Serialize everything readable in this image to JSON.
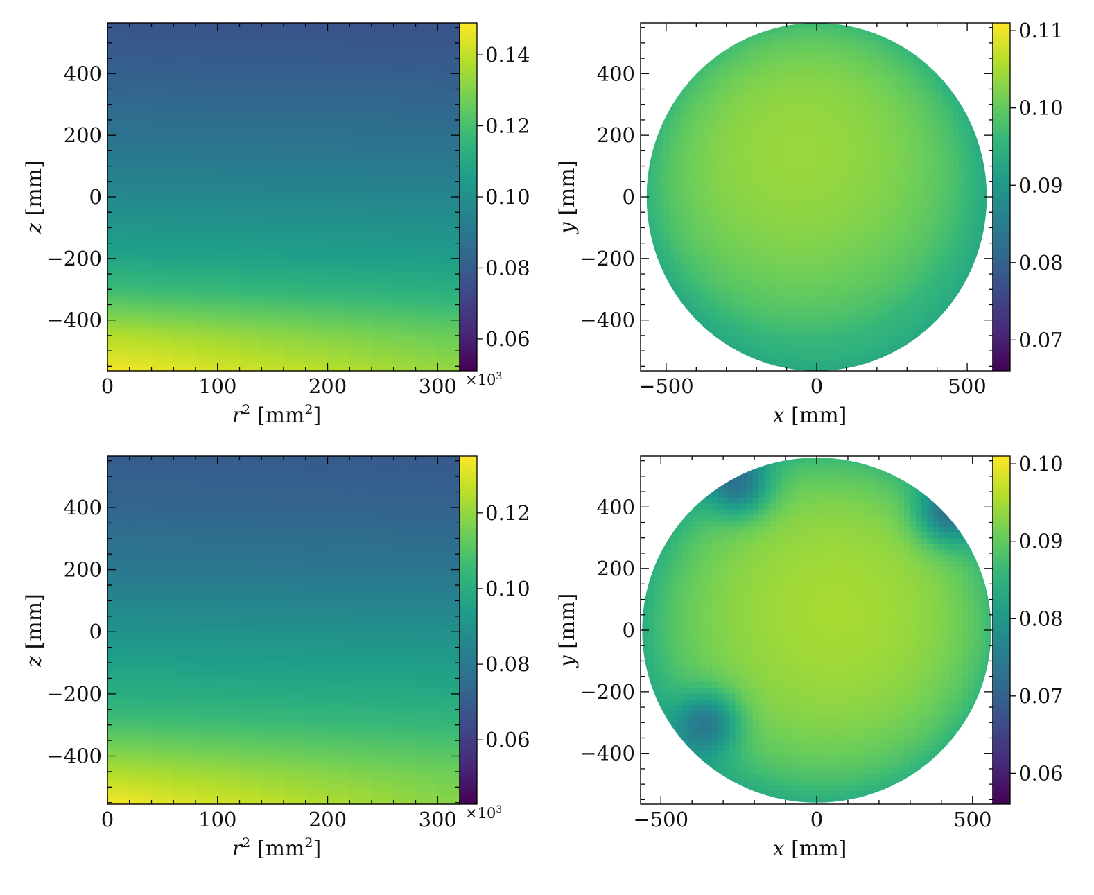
{
  "colorscale": {
    "name": "viridis",
    "stops": [
      "#440154",
      "#482878",
      "#3e4989",
      "#31688e",
      "#26828e",
      "#1f9e89",
      "#35b779",
      "#6ece58",
      "#b5de2b",
      "#fde725"
    ]
  },
  "chart_data": [
    {
      "id": "top-left",
      "type": "heatmap",
      "title": "",
      "xlabel_var": "r",
      "xlabel_sup": "2",
      "xlabel_unit_pre": " [mm",
      "xlabel_unit_sup": "2",
      "xlabel_unit_post": "]",
      "ylabel_var": "z",
      "ylabel_unit": " [mm]",
      "xlim": [
        0,
        320
      ],
      "ylim": [
        -565,
        565
      ],
      "x_ticks": [
        0,
        100,
        200,
        300
      ],
      "x_tick_labels": [
        "0",
        "100",
        "200",
        "300"
      ],
      "x_multiplier_base": "×10",
      "x_multiplier_exp": "3",
      "y_ticks": [
        -400,
        -200,
        0,
        200,
        400
      ],
      "y_tick_labels": [
        "−400",
        "−200",
        "0",
        "200",
        "400"
      ],
      "colorbar": {
        "range": [
          0.051,
          0.149
        ],
        "ticks": [
          0.06,
          0.08,
          0.1,
          0.12,
          0.14
        ],
        "tick_labels": [
          "0.06",
          "0.08",
          "0.10",
          "0.12",
          "0.14"
        ]
      },
      "grid": false,
      "approx_values": {
        "z": [
          -565,
          -450,
          -300,
          -200,
          0,
          200,
          400,
          565
        ],
        "r2": [
          0,
          320
        ],
        "value_at_r2_0": [
          0.148,
          0.138,
          0.118,
          0.108,
          0.097,
          0.088,
          0.081,
          0.077
        ],
        "value_at_r2_320": [
          0.133,
          0.126,
          0.112,
          0.105,
          0.096,
          0.087,
          0.08,
          0.076
        ]
      }
    },
    {
      "id": "top-right",
      "type": "heatmap",
      "title": "",
      "xlabel_var": "x",
      "xlabel_unit": " [mm]",
      "ylabel_var": "y",
      "ylabel_unit": " [mm]",
      "xlim": [
        -585,
        585
      ],
      "ylim": [
        -565,
        565
      ],
      "x_ticks": [
        -500,
        0,
        500
      ],
      "x_tick_labels": [
        "−500",
        "0",
        "500"
      ],
      "y_ticks": [
        -400,
        -200,
        0,
        200,
        400
      ],
      "y_tick_labels": [
        "−400",
        "−200",
        "0",
        "200",
        "400"
      ],
      "disk_radius": 565,
      "colorbar": {
        "range": [
          0.066,
          0.111
        ],
        "ticks": [
          0.07,
          0.08,
          0.09,
          0.1,
          0.11
        ],
        "tick_labels": [
          "0.07",
          "0.08",
          "0.09",
          "0.10",
          "0.11"
        ]
      },
      "grid": false,
      "approx_values": {
        "center_value": 0.104,
        "edge_value": 0.097,
        "hot_spot": [
          -60,
          150
        ]
      }
    },
    {
      "id": "bottom-left",
      "type": "heatmap",
      "title": "",
      "xlabel_var": "r",
      "xlabel_sup": "2",
      "xlabel_unit_pre": " [mm",
      "xlabel_unit_sup": "2",
      "xlabel_unit_post": "]",
      "ylabel_var": "z",
      "ylabel_unit": " [mm]",
      "xlim": [
        0,
        320
      ],
      "ylim": [
        -555,
        565
      ],
      "x_ticks": [
        0,
        100,
        200,
        300
      ],
      "x_tick_labels": [
        "0",
        "100",
        "200",
        "300"
      ],
      "x_multiplier_base": "×10",
      "x_multiplier_exp": "3",
      "y_ticks": [
        -400,
        -200,
        0,
        200,
        400
      ],
      "y_tick_labels": [
        "−400",
        "−200",
        "0",
        "200",
        "400"
      ],
      "colorbar": {
        "range": [
          0.043,
          0.135
        ],
        "ticks": [
          0.06,
          0.08,
          0.1,
          0.12
        ],
        "tick_labels": [
          "0.06",
          "0.08",
          "0.10",
          "0.12"
        ]
      },
      "grid": false,
      "approx_values": {
        "z": [
          -555,
          -450,
          -300,
          -200,
          0,
          200,
          400,
          565
        ],
        "r2": [
          0,
          320
        ],
        "value_at_r2_0": [
          0.134,
          0.124,
          0.108,
          0.1,
          0.09,
          0.08,
          0.073,
          0.07
        ],
        "value_at_r2_320": [
          0.118,
          0.114,
          0.104,
          0.098,
          0.089,
          0.079,
          0.072,
          0.069
        ]
      }
    },
    {
      "id": "bottom-right",
      "type": "heatmap",
      "title": "",
      "xlabel_var": "x",
      "xlabel_unit": " [mm]",
      "ylabel_var": "y",
      "ylabel_unit": " [mm]",
      "xlim": [
        -565,
        565
      ],
      "ylim": [
        -565,
        565
      ],
      "x_ticks": [
        -500,
        0,
        500
      ],
      "x_tick_labels": [
        "−500",
        "0",
        "500"
      ],
      "y_ticks": [
        -400,
        -200,
        0,
        200,
        400
      ],
      "y_tick_labels": [
        "−400",
        "−200",
        "0",
        "200",
        "400"
      ],
      "disk_radius": 560,
      "colorbar": {
        "range": [
          0.056,
          0.101
        ],
        "ticks": [
          0.06,
          0.07,
          0.08,
          0.09,
          0.1
        ],
        "tick_labels": [
          "0.06",
          "0.07",
          "0.08",
          "0.09",
          "0.10"
        ]
      },
      "grid": false,
      "approx_values": {
        "center_value": 0.095,
        "edge_value": 0.088,
        "hot_spot": [
          60,
          60
        ],
        "cool_spots": [
          [
            420,
            380
          ],
          [
            -350,
            -300
          ],
          [
            -250,
            470
          ]
        ]
      }
    }
  ]
}
